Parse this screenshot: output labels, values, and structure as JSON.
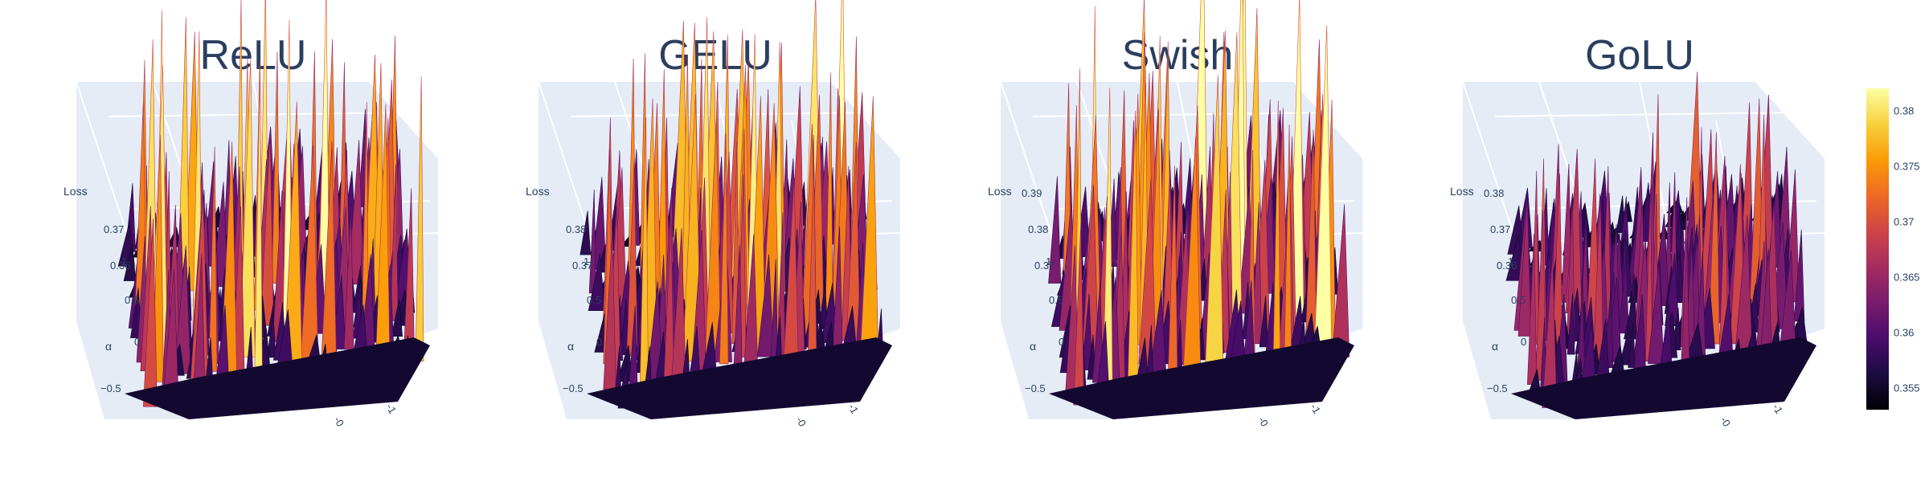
{
  "colorscale": {
    "name": "inferno",
    "stops": [
      "#000004",
      "#1b0c41",
      "#4a0c6b",
      "#781c6d",
      "#a52c60",
      "#cf4446",
      "#ed6925",
      "#fb9b06",
      "#f7d13d",
      "#fcffa4"
    ],
    "range": [
      0.353,
      0.382
    ],
    "ticks": [
      "0.355",
      "0.36",
      "0.365",
      "0.37",
      "0.375",
      "0.38"
    ],
    "tick_values": [
      0.355,
      0.36,
      0.365,
      0.37,
      0.375,
      0.38
    ]
  },
  "scene": {
    "bg": "#e5ecf6",
    "grid": "#ffffff",
    "axis_text": "#2a3f5f",
    "x_axis_title": "α",
    "z_axis_title": "Loss",
    "x_ticks": [
      "−0.5",
      "0",
      "0.5",
      "1"
    ],
    "y_ticks": [
      "-0",
      "-1"
    ]
  },
  "chart_data": [
    {
      "type": "surface",
      "title": "ReLU",
      "zlim": [
        0.355,
        0.381
      ],
      "z_ticks": [
        "0.36",
        "0.37"
      ],
      "roughness": 1.0,
      "seed": 11
    },
    {
      "type": "surface",
      "title": "GELU",
      "zlim": [
        0.355,
        0.381
      ],
      "z_ticks": [
        "0.37",
        "0.38"
      ],
      "roughness": 0.95,
      "seed": 23
    },
    {
      "type": "surface",
      "title": "Swish",
      "zlim": [
        0.355,
        0.392
      ],
      "z_ticks": [
        "0.37",
        "0.38",
        "0.39"
      ],
      "roughness": 1.0,
      "seed": 37
    },
    {
      "type": "surface",
      "title": "GoLU",
      "zlim": [
        0.353,
        0.382
      ],
      "z_ticks": [
        "0.36",
        "0.37",
        "0.38"
      ],
      "roughness": 0.6,
      "seed": 53
    }
  ]
}
